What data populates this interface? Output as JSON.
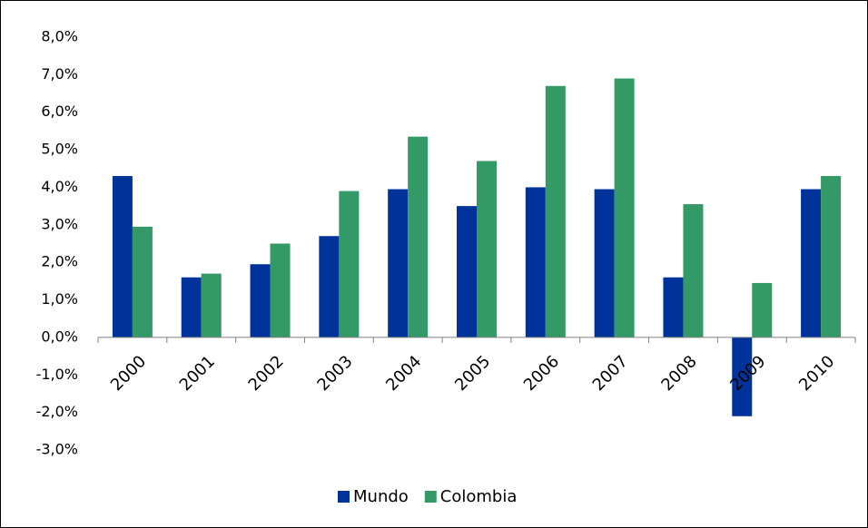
{
  "chart_data": {
    "type": "bar",
    "categories": [
      "2000",
      "2001",
      "2002",
      "2003",
      "2004",
      "2005",
      "2006",
      "2007",
      "2008",
      "2009",
      "2010"
    ],
    "series": [
      {
        "name": "Mundo",
        "color": "#003399",
        "values": [
          4.3,
          1.6,
          1.95,
          2.7,
          3.95,
          3.5,
          4.0,
          3.95,
          1.6,
          -2.1,
          3.95
        ]
      },
      {
        "name": "Colombia",
        "color": "#339966",
        "values": [
          2.95,
          1.7,
          2.5,
          3.9,
          5.35,
          4.7,
          6.7,
          6.9,
          3.55,
          1.45,
          4.3
        ]
      }
    ],
    "ylim": [
      -3,
      8
    ],
    "yticks": [
      {
        "value": -3,
        "label": "-3,0%"
      },
      {
        "value": -2,
        "label": "-2,0%"
      },
      {
        "value": -1,
        "label": "-1,0%"
      },
      {
        "value": 0,
        "label": "0,0%"
      },
      {
        "value": 1,
        "label": "1,0%"
      },
      {
        "value": 2,
        "label": "2,0%"
      },
      {
        "value": 3,
        "label": "3,0%"
      },
      {
        "value": 4,
        "label": "4,0%"
      },
      {
        "value": 5,
        "label": "5,0%"
      },
      {
        "value": 6,
        "label": "6,0%"
      },
      {
        "value": 7,
        "label": "7,0%"
      },
      {
        "value": 8,
        "label": "8,0%"
      }
    ],
    "grid": false,
    "legend": "bottom"
  }
}
